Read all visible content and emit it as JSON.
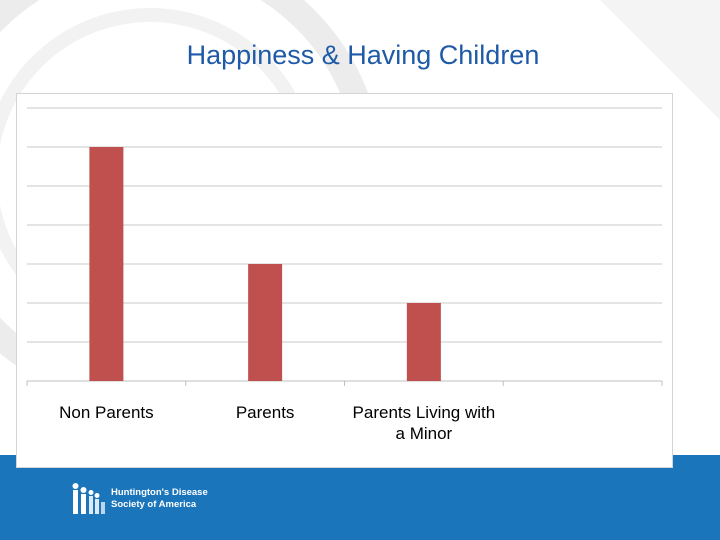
{
  "slide": {
    "title": "Happiness & Having Children"
  },
  "chart_data": {
    "type": "bar",
    "categories": [
      "Non Parents",
      "Parents",
      "Parents Living with a Minor"
    ],
    "values": [
      6,
      3,
      2
    ],
    "ylim": [
      0,
      7
    ],
    "gridlines": true,
    "bar_color": "#c0504d",
    "title": "",
    "xlabel": "",
    "ylabel": ""
  },
  "logo": {
    "line1": "Huntington's Disease",
    "line2": "Society of America"
  },
  "colors": {
    "title": "#1f5aa8",
    "band": "#1b75bb",
    "bar": "#c0504d"
  }
}
